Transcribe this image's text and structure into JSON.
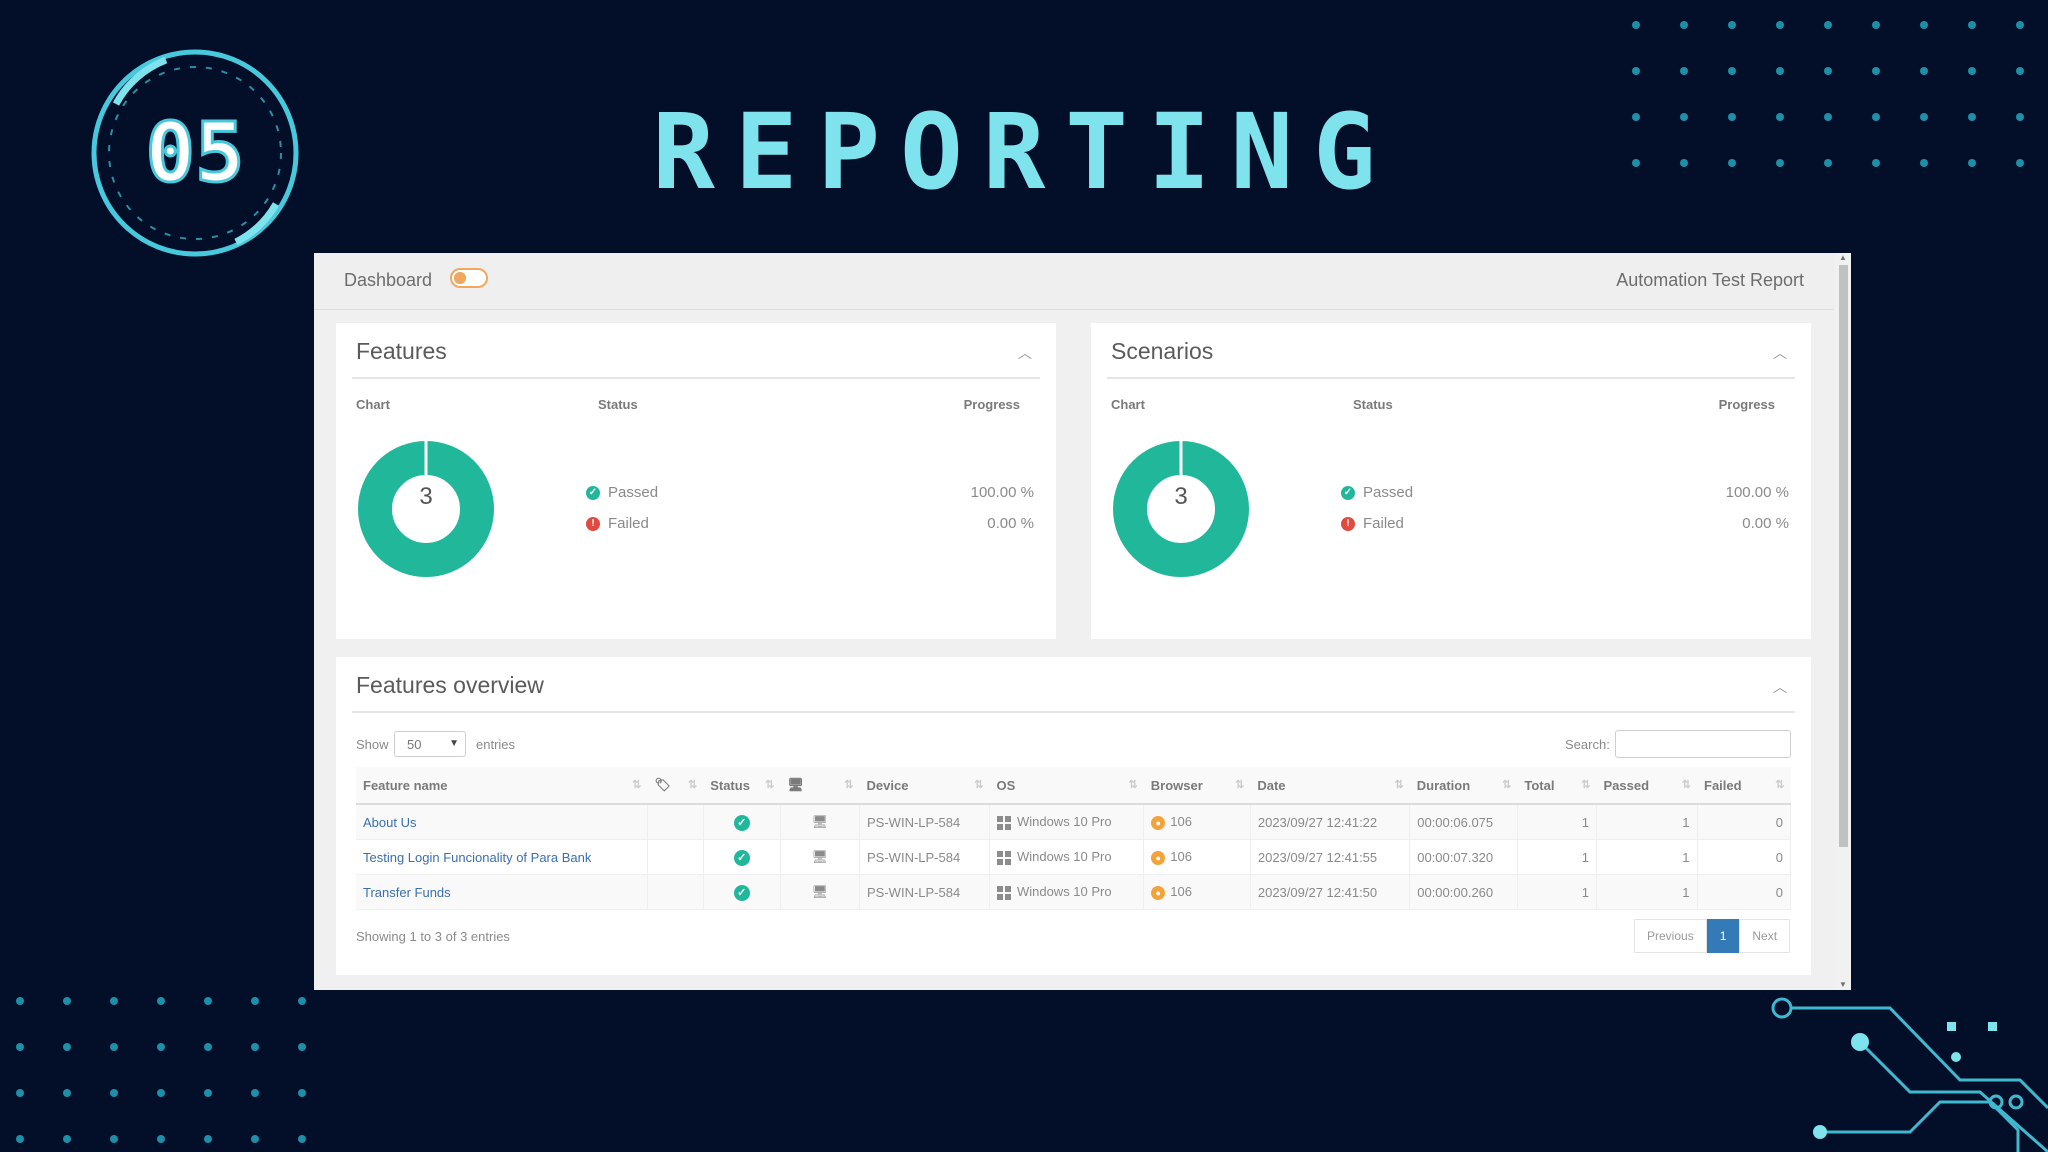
{
  "slide": {
    "badge_number": "05",
    "title": "REPORTING",
    "colors": {
      "background": "#030f28",
      "accent": "#7fe3ee",
      "dots": "#1e8fa8"
    }
  },
  "report": {
    "topbar": {
      "dashboard_label": "Dashboard",
      "report_title": "Automation Test Report"
    },
    "features_panel": {
      "title": "Features",
      "chart_label": "Chart",
      "status_label": "Status",
      "progress_label": "Progress",
      "count": "3",
      "passed_label": "Passed",
      "passed_pct": "100.00 %",
      "failed_label": "Failed",
      "failed_pct": "0.00 %"
    },
    "scenarios_panel": {
      "title": "Scenarios",
      "chart_label": "Chart",
      "status_label": "Status",
      "progress_label": "Progress",
      "count": "3",
      "passed_label": "Passed",
      "passed_pct": "100.00 %",
      "failed_label": "Failed",
      "failed_pct": "0.00 %"
    },
    "overview": {
      "title": "Features overview",
      "show_label": "Show",
      "page_size": "50",
      "entries_label": "entries",
      "search_label": "Search:",
      "columns": {
        "feature_name": "Feature name",
        "status": "Status",
        "device": "Device",
        "os": "OS",
        "browser": "Browser",
        "date": "Date",
        "duration": "Duration",
        "total": "Total",
        "passed": "Passed",
        "failed": "Failed"
      },
      "rows": [
        {
          "feature": "About Us",
          "device": "PS-WIN-LP-584",
          "os": "Windows 10 Pro",
          "browser": "106",
          "date": "2023/09/27 12:41:22",
          "duration": "00:00:06.075",
          "total": "1",
          "passed": "1",
          "failed": "0"
        },
        {
          "feature": "Testing Login Funcionality of Para Bank",
          "device": "PS-WIN-LP-584",
          "os": "Windows 10 Pro",
          "browser": "106",
          "date": "2023/09/27 12:41:55",
          "duration": "00:00:07.320",
          "total": "1",
          "passed": "1",
          "failed": "0"
        },
        {
          "feature": "Transfer Funds",
          "device": "PS-WIN-LP-584",
          "os": "Windows 10 Pro",
          "browser": "106",
          "date": "2023/09/27 12:41:50",
          "duration": "00:00:00.260",
          "total": "1",
          "passed": "1",
          "failed": "0"
        }
      ],
      "summary": "Showing 1 to 3 of 3 entries",
      "pager": {
        "previous": "Previous",
        "current": "1",
        "next": "Next"
      }
    },
    "colors": {
      "passed": "#21b79b",
      "failed": "#e04a3f",
      "link": "#3a6fb0",
      "active_page": "#337ab7"
    }
  }
}
